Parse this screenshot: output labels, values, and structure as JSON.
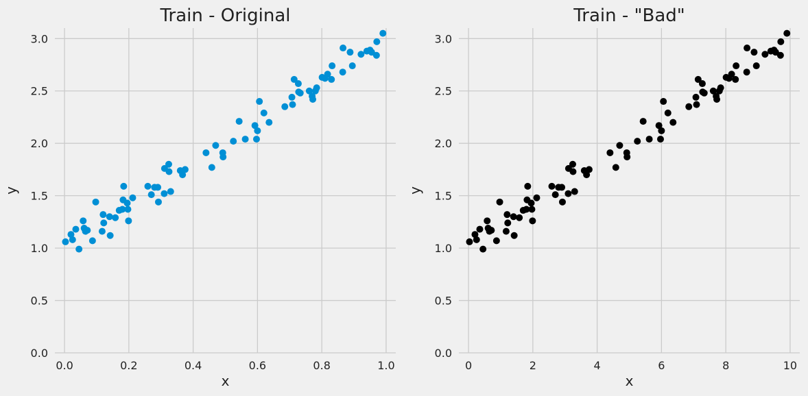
{
  "colors": {
    "background": "#f0f0f0",
    "grid": "#cbcbcb",
    "series_left": "#008fd5",
    "series_right": "#000000"
  },
  "chart_data": [
    {
      "type": "scatter",
      "title": "Train - Original",
      "xlabel": "x",
      "ylabel": "y",
      "xlim": [
        -0.03,
        1.03
      ],
      "ylim": [
        0,
        3.1
      ],
      "xticks": [
        "0.0",
        "0.2",
        "0.4",
        "0.6",
        "0.8",
        "1.0"
      ],
      "yticks": [
        "0.0",
        "0.5",
        "1.0",
        "1.5",
        "2.0",
        "2.5",
        "3.0"
      ],
      "grid": true,
      "series": [
        {
          "color": "#008fd5",
          "points": [
            [
              0.003,
              1.06
            ],
            [
              0.02,
              1.13
            ],
            [
              0.025,
              1.08
            ],
            [
              0.035,
              1.18
            ],
            [
              0.045,
              0.99
            ],
            [
              0.058,
              1.26
            ],
            [
              0.061,
              1.19
            ],
            [
              0.065,
              1.16
            ],
            [
              0.071,
              1.17
            ],
            [
              0.087,
              1.07
            ],
            [
              0.097,
              1.44
            ],
            [
              0.117,
              1.16
            ],
            [
              0.12,
              1.32
            ],
            [
              0.122,
              1.24
            ],
            [
              0.14,
              1.3
            ],
            [
              0.142,
              1.12
            ],
            [
              0.158,
              1.29
            ],
            [
              0.17,
              1.36
            ],
            [
              0.18,
              1.37
            ],
            [
              0.182,
              1.46
            ],
            [
              0.184,
              1.59
            ],
            [
              0.195,
              1.43
            ],
            [
              0.197,
              1.37
            ],
            [
              0.199,
              1.26
            ],
            [
              0.212,
              1.48
            ],
            [
              0.259,
              1.59
            ],
            [
              0.27,
              1.51
            ],
            [
              0.28,
              1.58
            ],
            [
              0.29,
              1.58
            ],
            [
              0.292,
              1.44
            ],
            [
              0.31,
              1.52
            ],
            [
              0.311,
              1.76
            ],
            [
              0.324,
              1.8
            ],
            [
              0.325,
              1.73
            ],
            [
              0.33,
              1.54
            ],
            [
              0.36,
              1.74
            ],
            [
              0.367,
              1.7
            ],
            [
              0.375,
              1.75
            ],
            [
              0.44,
              1.91
            ],
            [
              0.458,
              1.77
            ],
            [
              0.47,
              1.98
            ],
            [
              0.492,
              1.91
            ],
            [
              0.493,
              1.87
            ],
            [
              0.525,
              2.02
            ],
            [
              0.543,
              2.21
            ],
            [
              0.562,
              2.04
            ],
            [
              0.592,
              2.17
            ],
            [
              0.597,
              2.04
            ],
            [
              0.6,
              2.12
            ],
            [
              0.606,
              2.4
            ],
            [
              0.62,
              2.29
            ],
            [
              0.636,
              2.2
            ],
            [
              0.685,
              2.35
            ],
            [
              0.707,
              2.44
            ],
            [
              0.709,
              2.37
            ],
            [
              0.714,
              2.61
            ],
            [
              0.727,
              2.57
            ],
            [
              0.728,
              2.49
            ],
            [
              0.733,
              2.48
            ],
            [
              0.761,
              2.5
            ],
            [
              0.77,
              2.45
            ],
            [
              0.772,
              2.42
            ],
            [
              0.78,
              2.5
            ],
            [
              0.784,
              2.53
            ],
            [
              0.801,
              2.63
            ],
            [
              0.81,
              2.62
            ],
            [
              0.818,
              2.66
            ],
            [
              0.83,
              2.61
            ],
            [
              0.832,
              2.74
            ],
            [
              0.865,
              2.68
            ],
            [
              0.866,
              2.91
            ],
            [
              0.888,
              2.87
            ],
            [
              0.895,
              2.74
            ],
            [
              0.922,
              2.85
            ],
            [
              0.94,
              2.88
            ],
            [
              0.95,
              2.89
            ],
            [
              0.955,
              2.87
            ],
            [
              0.97,
              2.84
            ],
            [
              0.971,
              2.97
            ],
            [
              0.99,
              3.05
            ]
          ]
        }
      ]
    },
    {
      "type": "scatter",
      "title": "Train - \"Bad\"",
      "xlabel": "x",
      "ylabel": "y",
      "xlim": [
        -0.3,
        10.3
      ],
      "ylim": [
        0,
        3.1
      ],
      "xticks": [
        "0",
        "2",
        "4",
        "6",
        "8",
        "10"
      ],
      "yticks": [
        "0.0",
        "0.5",
        "1.0",
        "1.5",
        "2.0",
        "2.5",
        "3.0"
      ],
      "grid": true,
      "series": [
        {
          "color": "#000000",
          "points": [
            [
              0.03,
              1.06
            ],
            [
              0.2,
              1.13
            ],
            [
              0.25,
              1.08
            ],
            [
              0.35,
              1.18
            ],
            [
              0.45,
              0.99
            ],
            [
              0.58,
              1.26
            ],
            [
              0.61,
              1.19
            ],
            [
              0.65,
              1.16
            ],
            [
              0.71,
              1.17
            ],
            [
              0.87,
              1.07
            ],
            [
              0.97,
              1.44
            ],
            [
              1.17,
              1.16
            ],
            [
              1.2,
              1.32
            ],
            [
              1.22,
              1.24
            ],
            [
              1.4,
              1.3
            ],
            [
              1.42,
              1.12
            ],
            [
              1.58,
              1.29
            ],
            [
              1.7,
              1.36
            ],
            [
              1.8,
              1.37
            ],
            [
              1.82,
              1.46
            ],
            [
              1.84,
              1.59
            ],
            [
              1.95,
              1.43
            ],
            [
              1.97,
              1.37
            ],
            [
              1.99,
              1.26
            ],
            [
              2.12,
              1.48
            ],
            [
              2.59,
              1.59
            ],
            [
              2.7,
              1.51
            ],
            [
              2.8,
              1.58
            ],
            [
              2.9,
              1.58
            ],
            [
              2.92,
              1.44
            ],
            [
              3.1,
              1.52
            ],
            [
              3.11,
              1.76
            ],
            [
              3.24,
              1.8
            ],
            [
              3.25,
              1.73
            ],
            [
              3.3,
              1.54
            ],
            [
              3.6,
              1.74
            ],
            [
              3.67,
              1.7
            ],
            [
              3.75,
              1.75
            ],
            [
              4.4,
              1.91
            ],
            [
              4.58,
              1.77
            ],
            [
              4.7,
              1.98
            ],
            [
              4.92,
              1.91
            ],
            [
              4.93,
              1.87
            ],
            [
              5.25,
              2.02
            ],
            [
              5.43,
              2.21
            ],
            [
              5.62,
              2.04
            ],
            [
              5.92,
              2.17
            ],
            [
              5.97,
              2.04
            ],
            [
              6.0,
              2.12
            ],
            [
              6.06,
              2.4
            ],
            [
              6.2,
              2.29
            ],
            [
              6.36,
              2.2
            ],
            [
              6.85,
              2.35
            ],
            [
              7.07,
              2.44
            ],
            [
              7.09,
              2.37
            ],
            [
              7.14,
              2.61
            ],
            [
              7.27,
              2.57
            ],
            [
              7.28,
              2.49
            ],
            [
              7.33,
              2.48
            ],
            [
              7.61,
              2.5
            ],
            [
              7.7,
              2.45
            ],
            [
              7.72,
              2.42
            ],
            [
              7.8,
              2.5
            ],
            [
              7.84,
              2.53
            ],
            [
              8.01,
              2.63
            ],
            [
              8.1,
              2.62
            ],
            [
              8.18,
              2.66
            ],
            [
              8.3,
              2.61
            ],
            [
              8.32,
              2.74
            ],
            [
              8.65,
              2.68
            ],
            [
              8.66,
              2.91
            ],
            [
              8.88,
              2.87
            ],
            [
              8.95,
              2.74
            ],
            [
              9.22,
              2.85
            ],
            [
              9.4,
              2.88
            ],
            [
              9.5,
              2.89
            ],
            [
              9.55,
              2.87
            ],
            [
              9.7,
              2.84
            ],
            [
              9.71,
              2.97
            ],
            [
              9.9,
              3.05
            ]
          ]
        }
      ]
    }
  ]
}
